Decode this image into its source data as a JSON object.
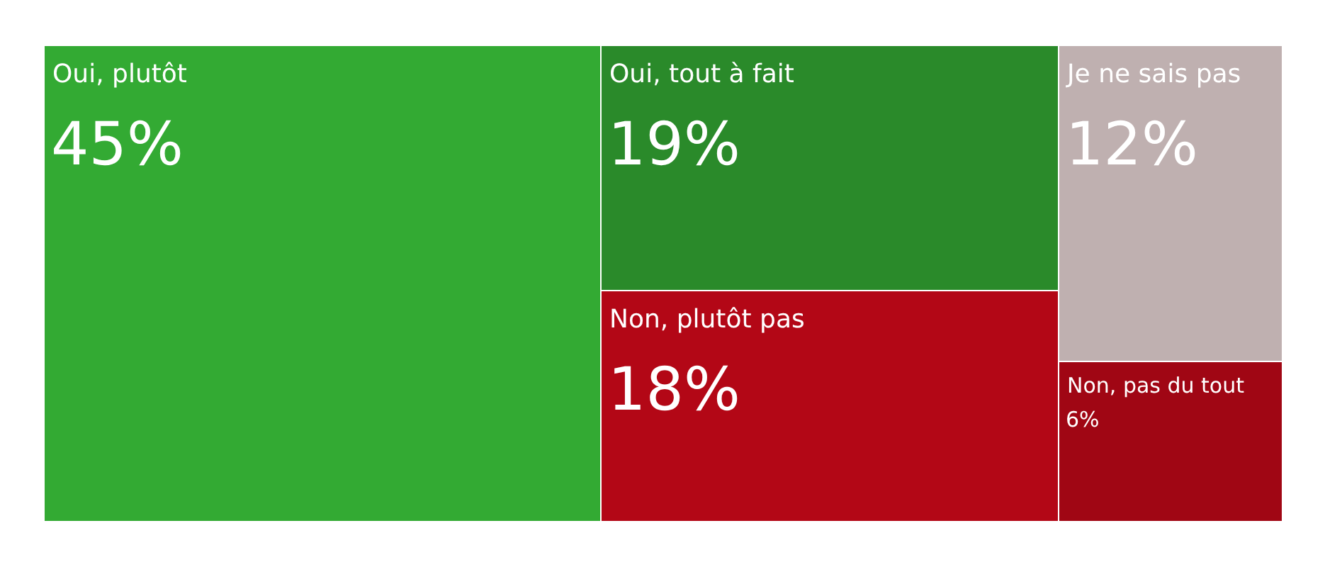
{
  "chart_data": {
    "type": "other",
    "categories": [
      "Oui, plutôt",
      "Oui, tout à fait",
      "Non, plutôt pas",
      "Je ne sais pas",
      "Non, pas du tout"
    ],
    "values": [
      45,
      19,
      18,
      12,
      6
    ],
    "colors": [
      "#33aa33",
      "#2a8a2a",
      "#b30716",
      "#bfb0b0",
      "#a00614"
    ],
    "value_labels": [
      "45%",
      "19%",
      "18%",
      "12%",
      "6%"
    ]
  }
}
